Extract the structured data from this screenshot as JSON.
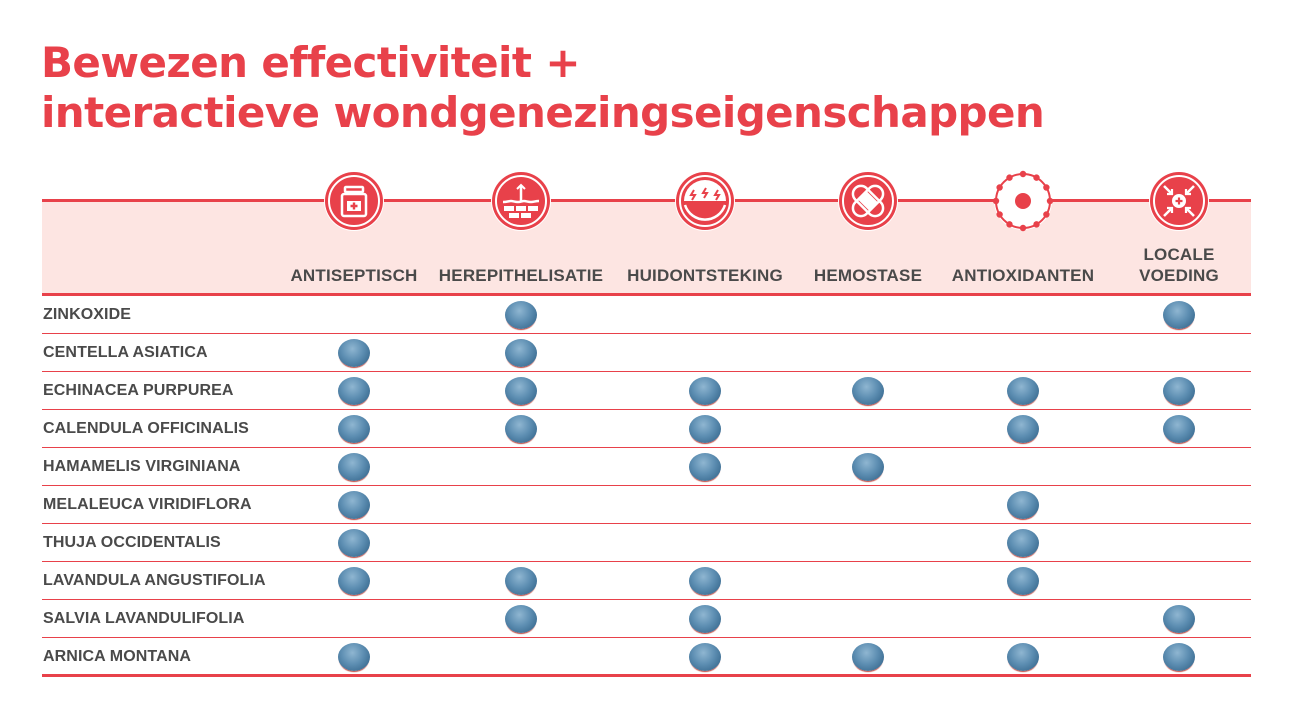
{
  "title_lines": [
    "Bewezen effectiviteit +",
    "interactieve wondgenezingseigenschappen"
  ],
  "colors": {
    "accent": "#e8414a",
    "header_band": "#fde5e2",
    "text": "#4a4a4a",
    "dot": "#5d8eb2"
  },
  "chart_data": {
    "type": "table",
    "columns": [
      {
        "label": "ANTISEPTISCH",
        "icon": "medicine-bottle-icon"
      },
      {
        "label": "HEREPITHELISATIE",
        "icon": "skin-layers-icon"
      },
      {
        "label": "HUIDONTSTEKING",
        "icon": "skin-inflammation-icon"
      },
      {
        "label": "HEMOSTASE",
        "icon": "bandage-icon"
      },
      {
        "label": "ANTIOXIDANTEN",
        "icon": "antioxidant-cell-icon"
      },
      {
        "label": "LOCALE\nVOEDING",
        "icon": "local-nutrition-icon"
      }
    ],
    "rows": [
      {
        "label": "ZINKOXIDE",
        "values": [
          false,
          true,
          false,
          false,
          false,
          true
        ]
      },
      {
        "label": "CENTELLA ASIATICA",
        "values": [
          true,
          true,
          false,
          false,
          false,
          false
        ]
      },
      {
        "label": "ECHINACEA PURPUREA",
        "values": [
          true,
          true,
          true,
          true,
          true,
          true
        ]
      },
      {
        "label": "CALENDULA OFFICINALIS",
        "values": [
          true,
          true,
          true,
          false,
          true,
          true
        ]
      },
      {
        "label": "HAMAMELIS VIRGINIANA",
        "values": [
          true,
          false,
          true,
          true,
          false,
          false
        ]
      },
      {
        "label": "MELALEUCA VIRIDIFLORA",
        "values": [
          true,
          false,
          false,
          false,
          true,
          false
        ]
      },
      {
        "label": "THUJA OCCIDENTALIS",
        "values": [
          true,
          false,
          false,
          false,
          true,
          false
        ]
      },
      {
        "label": "LAVANDULA ANGUSTIFOLIA",
        "values": [
          true,
          true,
          true,
          false,
          true,
          false
        ]
      },
      {
        "label": "SALVIA LAVANDULIFOLIA",
        "values": [
          false,
          true,
          true,
          false,
          false,
          true
        ]
      },
      {
        "label": "ARNICA MONTANA",
        "values": [
          true,
          false,
          true,
          true,
          true,
          true
        ]
      }
    ]
  }
}
